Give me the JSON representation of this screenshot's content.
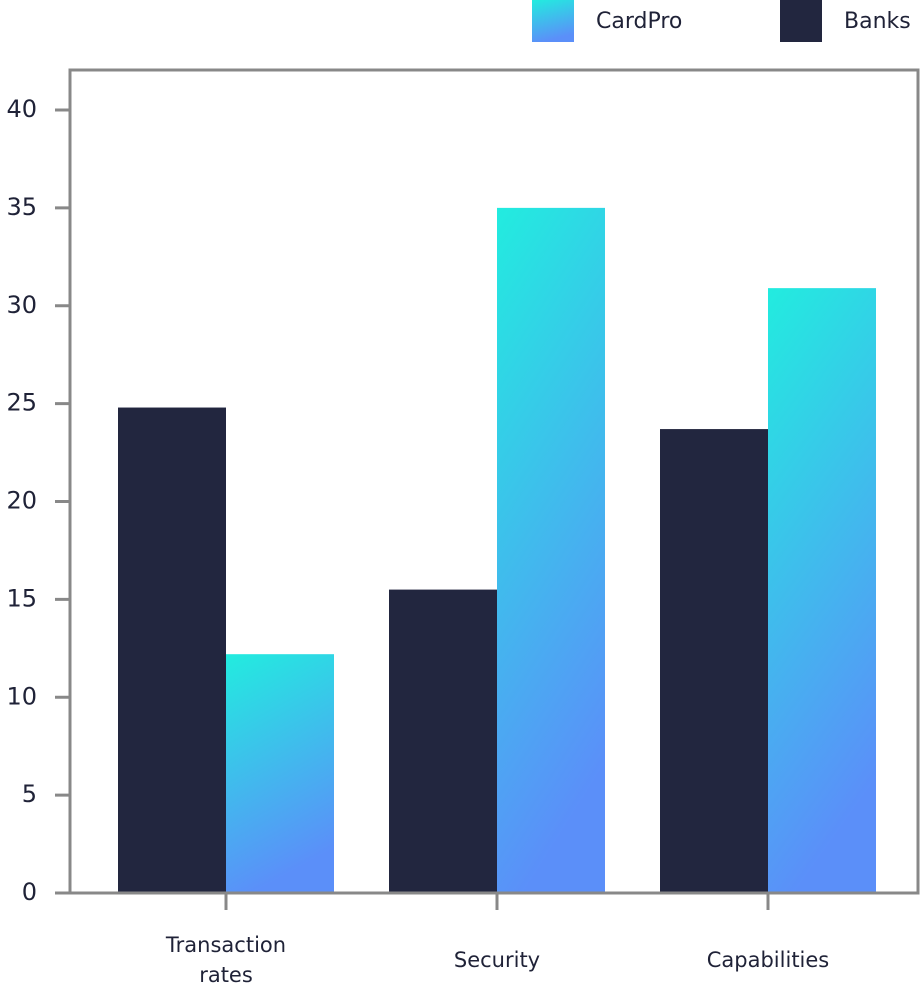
{
  "chart_data": {
    "type": "bar",
    "categories": [
      "Transaction rates",
      "Security",
      "Capabilities"
    ],
    "series": [
      {
        "name": "Banks",
        "color": "#22263f",
        "values": [
          24.8,
          15.5,
          23.7
        ]
      },
      {
        "name": "CardPro",
        "color": [
          "#22ecdf",
          "#5b8ff9"
        ],
        "values": [
          12.2,
          35,
          30.9
        ]
      }
    ],
    "ylim": [
      0,
      40
    ],
    "yticks": [
      0,
      5,
      10,
      15,
      20,
      25,
      30,
      35,
      40
    ],
    "legend": "top-right"
  }
}
